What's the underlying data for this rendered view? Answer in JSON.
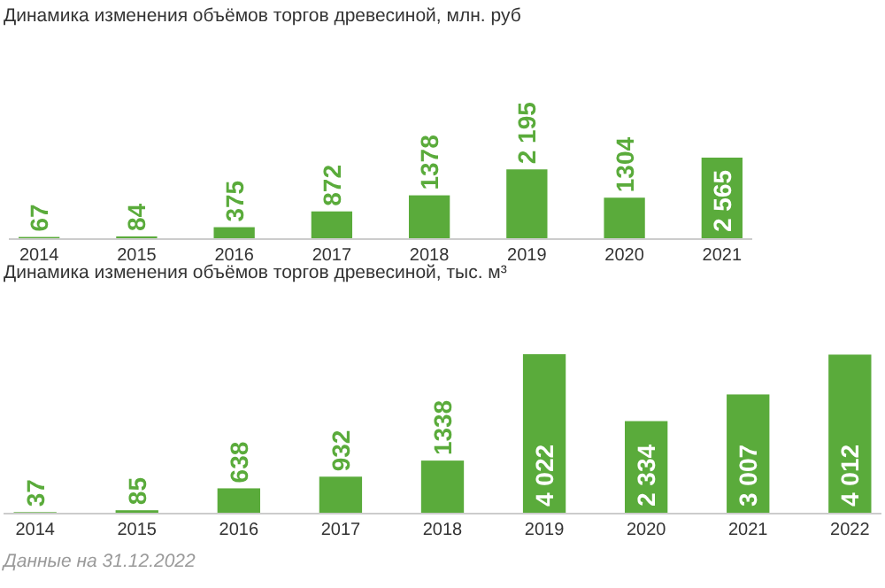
{
  "chart_data": [
    {
      "type": "bar",
      "title": "Динамика изменения объёмов торгов древесиной, млн. руб",
      "categories": [
        "2014",
        "2015",
        "2016",
        "2017",
        "2018",
        "2019",
        "2020",
        "2021"
      ],
      "values": [
        67,
        84,
        375,
        872,
        1378,
        2195,
        1304,
        2565
      ],
      "value_labels": [
        "67",
        "84",
        "375",
        "872",
        "1378",
        "2 195",
        "1304",
        "2 565"
      ],
      "color": "#5aab3b"
    },
    {
      "type": "bar",
      "title": "Динамика изменения объёмов торгов древесиной, тыс. м³",
      "categories": [
        "2014",
        "2015",
        "2016",
        "2017",
        "2018",
        "2019",
        "2020",
        "2021",
        "2022"
      ],
      "values": [
        37,
        85,
        638,
        932,
        1338,
        4022,
        2334,
        3007,
        4012
      ],
      "value_labels": [
        "37",
        "85",
        "638",
        "932",
        "1338",
        "4 022",
        "2 334",
        "3 007",
        "4 012"
      ],
      "color": "#5aab3b",
      "annotations": [
        "Данные на 31.12.2022"
      ]
    }
  ]
}
